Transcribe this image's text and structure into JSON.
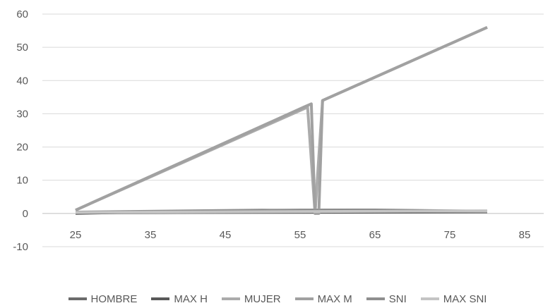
{
  "chart_data": {
    "type": "line",
    "title": "",
    "xlabel": "",
    "ylabel": "",
    "xlim": [
      25,
      85
    ],
    "ylim": [
      -10,
      60
    ],
    "x_ticks": [
      25,
      35,
      45,
      55,
      65,
      75,
      85
    ],
    "y_ticks": [
      -10,
      0,
      10,
      20,
      30,
      40,
      50,
      60
    ],
    "grid": "horizontal",
    "legend_position": "bottom",
    "series": [
      {
        "name": "HOMBRE",
        "color": "#6b6b6b",
        "x": [
          25,
          35,
          45,
          55,
          65,
          75,
          80
        ],
        "y": [
          0,
          0.5,
          0.8,
          1.0,
          1.0,
          0.8,
          0.6
        ]
      },
      {
        "name": "MAX H",
        "color": "#595959",
        "x": [
          25,
          80
        ],
        "y": [
          0.2,
          0.5
        ]
      },
      {
        "name": "MUJER",
        "color": "#ababab",
        "x": [
          25,
          56,
          57,
          58,
          59,
          80
        ],
        "y": [
          1,
          32,
          0,
          34,
          35,
          56
        ]
      },
      {
        "name": "MAX M",
        "color": "#a1a1a1",
        "x": [
          25,
          55.5,
          56.5,
          57,
          57.5,
          58,
          80
        ],
        "y": [
          1,
          32,
          33,
          0,
          0,
          34,
          56
        ]
      },
      {
        "name": "SNI",
        "color": "#8f8f8f",
        "x": [
          25,
          50,
          80
        ],
        "y": [
          0.4,
          1.0,
          0.6
        ]
      },
      {
        "name": "MAX SNI",
        "color": "#c4c4c4",
        "x": [
          25,
          80
        ],
        "y": [
          0.3,
          0.8
        ]
      }
    ]
  }
}
